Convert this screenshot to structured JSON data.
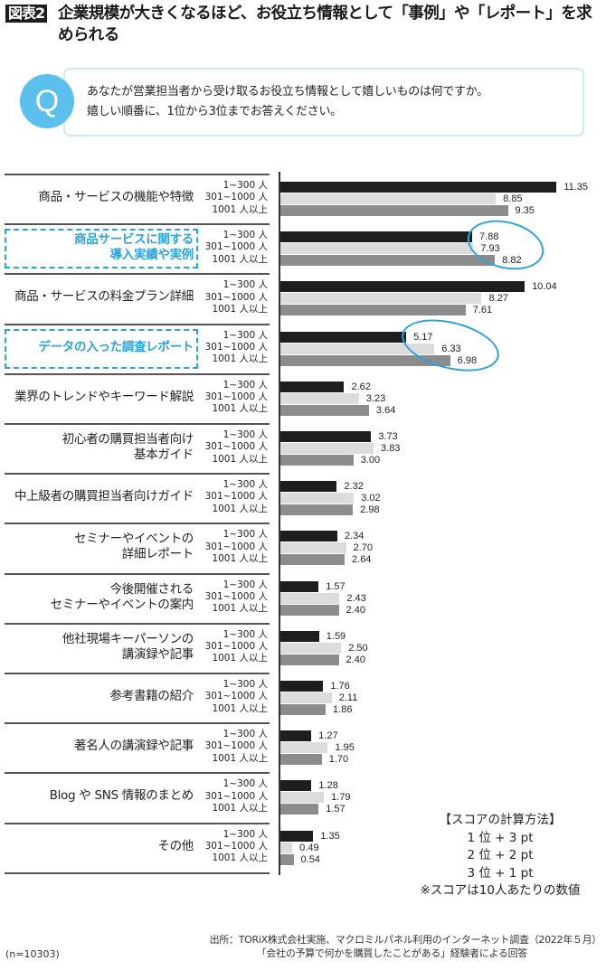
{
  "header": {
    "figure_badge": "図表2",
    "title": "企業規模が大きくなるほど、お役立ち情報として「事例」や「レポート」を求められる"
  },
  "question": {
    "icon_label": "Q",
    "line1": "あなたが営業担当者から受け取るお役立ち情報として嬉しいものは何ですか。",
    "line2": "嬉しい順番に、1位から3位までお答えください。"
  },
  "colors": {
    "series_1_300": "#1e1e1e",
    "series_301_1000": "#dcdcdc",
    "series_1001_plus": "#8c8c8c",
    "highlight": "#2ea3d8",
    "q_circle": "#5cc0ec"
  },
  "segment_labels": [
    "1~300 人",
    "301~1000 人",
    "1001 人以上"
  ],
  "chart_data": {
    "type": "bar",
    "orientation": "horizontal",
    "title": "企業規模が大きくなるほど、お役立ち情報として「事例」や「レポート」を求められる",
    "xlabel": "",
    "ylabel": "",
    "grid": false,
    "legend_position": "inline (per-row segment labels)",
    "categories": [
      "商品・サービスの機能や特徴",
      "商品サービスに関する導入実績や実例",
      "商品・サービスの料金プラン詳細",
      "データの入った調査レポート",
      "業界のトレンドやキーワード解説",
      "初心者の購買担当者向け基本ガイド",
      "中上級者の購買担当者向けガイド",
      "セミナーやイベントの詳細レポート",
      "今後開催されるセミナーやイベントの案内",
      "他社現場キーパーソンの講演録や記事",
      "参考書籍の紹介",
      "著名人の講演録や記事",
      "Blog や SNS 情報のまとめ",
      "その他"
    ],
    "series": [
      {
        "name": "1~300 人",
        "values": [
          11.35,
          7.88,
          10.04,
          5.17,
          2.62,
          3.73,
          2.32,
          2.34,
          1.57,
          1.59,
          1.76,
          1.27,
          1.28,
          1.35
        ]
      },
      {
        "name": "301~1000 人",
        "values": [
          8.85,
          7.93,
          8.27,
          6.33,
          3.23,
          3.83,
          3.02,
          2.7,
          2.43,
          2.5,
          2.11,
          1.95,
          1.79,
          0.49
        ]
      },
      {
        "name": "1001 人以上",
        "values": [
          9.35,
          8.82,
          7.61,
          6.98,
          3.64,
          3.0,
          2.98,
          2.64,
          2.4,
          2.4,
          1.86,
          1.7,
          1.57,
          0.54
        ]
      }
    ],
    "highlighted_categories": [
      1,
      3
    ],
    "xlim": [
      0,
      12
    ]
  },
  "rows": [
    {
      "label_lines": [
        "商品・サービスの機能や特徴"
      ],
      "highlight": false,
      "values": [
        "11.35",
        "8.85",
        "9.35"
      ]
    },
    {
      "label_lines": [
        "商品サービスに関する",
        "導入実績や実例"
      ],
      "highlight": true,
      "values": [
        "7.88",
        "7.93",
        "8.82"
      ]
    },
    {
      "label_lines": [
        "商品・サービスの料金プラン詳細"
      ],
      "highlight": false,
      "values": [
        "10.04",
        "8.27",
        "7.61"
      ]
    },
    {
      "label_lines": [
        "データの入った調査レポート"
      ],
      "highlight": true,
      "values": [
        "5.17",
        "6.33",
        "6.98"
      ]
    },
    {
      "label_lines": [
        "業界のトレンドやキーワード解説"
      ],
      "highlight": false,
      "values": [
        "2.62",
        "3.23",
        "3.64"
      ]
    },
    {
      "label_lines": [
        "初心者の購買担当者向け",
        "基本ガイド"
      ],
      "highlight": false,
      "values": [
        "3.73",
        "3.83",
        "3.00"
      ]
    },
    {
      "label_lines": [
        "中上級者の購買担当者向けガイド"
      ],
      "highlight": false,
      "values": [
        "2.32",
        "3.02",
        "2.98"
      ]
    },
    {
      "label_lines": [
        "セミナーやイベントの",
        "詳細レポート"
      ],
      "highlight": false,
      "values": [
        "2.34",
        "2.70",
        "2.64"
      ]
    },
    {
      "label_lines": [
        "今後開催される",
        "セミナーやイベントの案内"
      ],
      "highlight": false,
      "values": [
        "1.57",
        "2.43",
        "2.40"
      ]
    },
    {
      "label_lines": [
        "他社現場キーパーソンの",
        "講演録や記事"
      ],
      "highlight": false,
      "values": [
        "1.59",
        "2.50",
        "2.40"
      ]
    },
    {
      "label_lines": [
        "参考書籍の紹介"
      ],
      "highlight": false,
      "values": [
        "1.76",
        "2.11",
        "1.86"
      ]
    },
    {
      "label_lines": [
        "著名人の講演録や記事"
      ],
      "highlight": false,
      "values": [
        "1.27",
        "1.95",
        "1.70"
      ]
    },
    {
      "label_lines": [
        "Blog や SNS 情報のまとめ"
      ],
      "highlight": false,
      "values": [
        "1.28",
        "1.79",
        "1.57"
      ]
    },
    {
      "label_lines": [
        "その他"
      ],
      "highlight": false,
      "values": [
        "1.35",
        "0.49",
        "0.54"
      ]
    }
  ],
  "score_note": {
    "heading": "【スコアの計算方法】",
    "line1": "1 位 + 3 pt",
    "line2": "2 位 + 2 pt",
    "line3": "3 位 + 1 pt",
    "footnote": "※スコアは10人あたりの数値"
  },
  "footer": {
    "sample_size": "(n=10303)",
    "source_line1": "出所：TORiX株式会社実施、マクロミルパネル利用のインターネット調査（2022年５月）",
    "source_line2": "「会社の予算で何かを購買したことがある」経験者による回答"
  }
}
